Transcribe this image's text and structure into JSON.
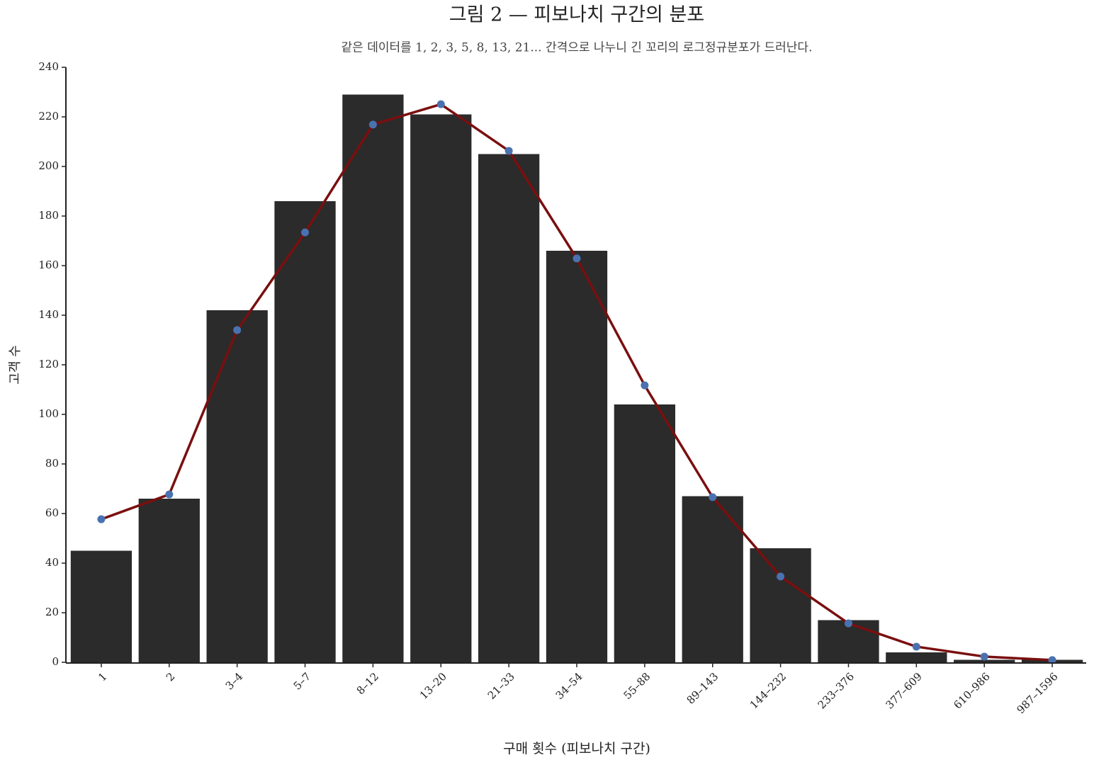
{
  "chart_data": {
    "type": "bar",
    "title": "그림 2 — 피보나치 구간의 분포",
    "subtitle": "같은 데이터를 1, 2, 3, 5, 8, 13, 21... 간격으로 나누니 긴 꼬리의 로그정규분포가 드러난다.",
    "x_label": "구매 횟수 (피보나치 구간)",
    "y_label": "고객 수",
    "categories": [
      "1",
      "2",
      "3–4",
      "5–7",
      "8–12",
      "13–20",
      "21–33",
      "34–54",
      "55–88",
      "89–143",
      "144–232",
      "233–376",
      "377–609",
      "610–986",
      "987–1596"
    ],
    "series": [
      {
        "type": "bar",
        "color": "#2b2b2b",
        "values": [
          45,
          66,
          142,
          186,
          229,
          221,
          205,
          166,
          104,
          67,
          46,
          17,
          4,
          1,
          1
        ]
      },
      {
        "type": "line",
        "color": "#7a0f0f",
        "marker_color": "#4a72b0",
        "values": [
          57.7,
          67.7,
          134,
          173.4,
          216.9,
          225.1,
          206.3,
          162.9,
          111.7,
          66.6,
          34.6,
          15.7,
          6.3,
          2.3,
          0.9
        ]
      }
    ],
    "ylim": [
      0,
      240
    ],
    "yticks": [
      0,
      20,
      40,
      60,
      80,
      100,
      120,
      140,
      160,
      180,
      200,
      220,
      240
    ],
    "grid": false
  }
}
